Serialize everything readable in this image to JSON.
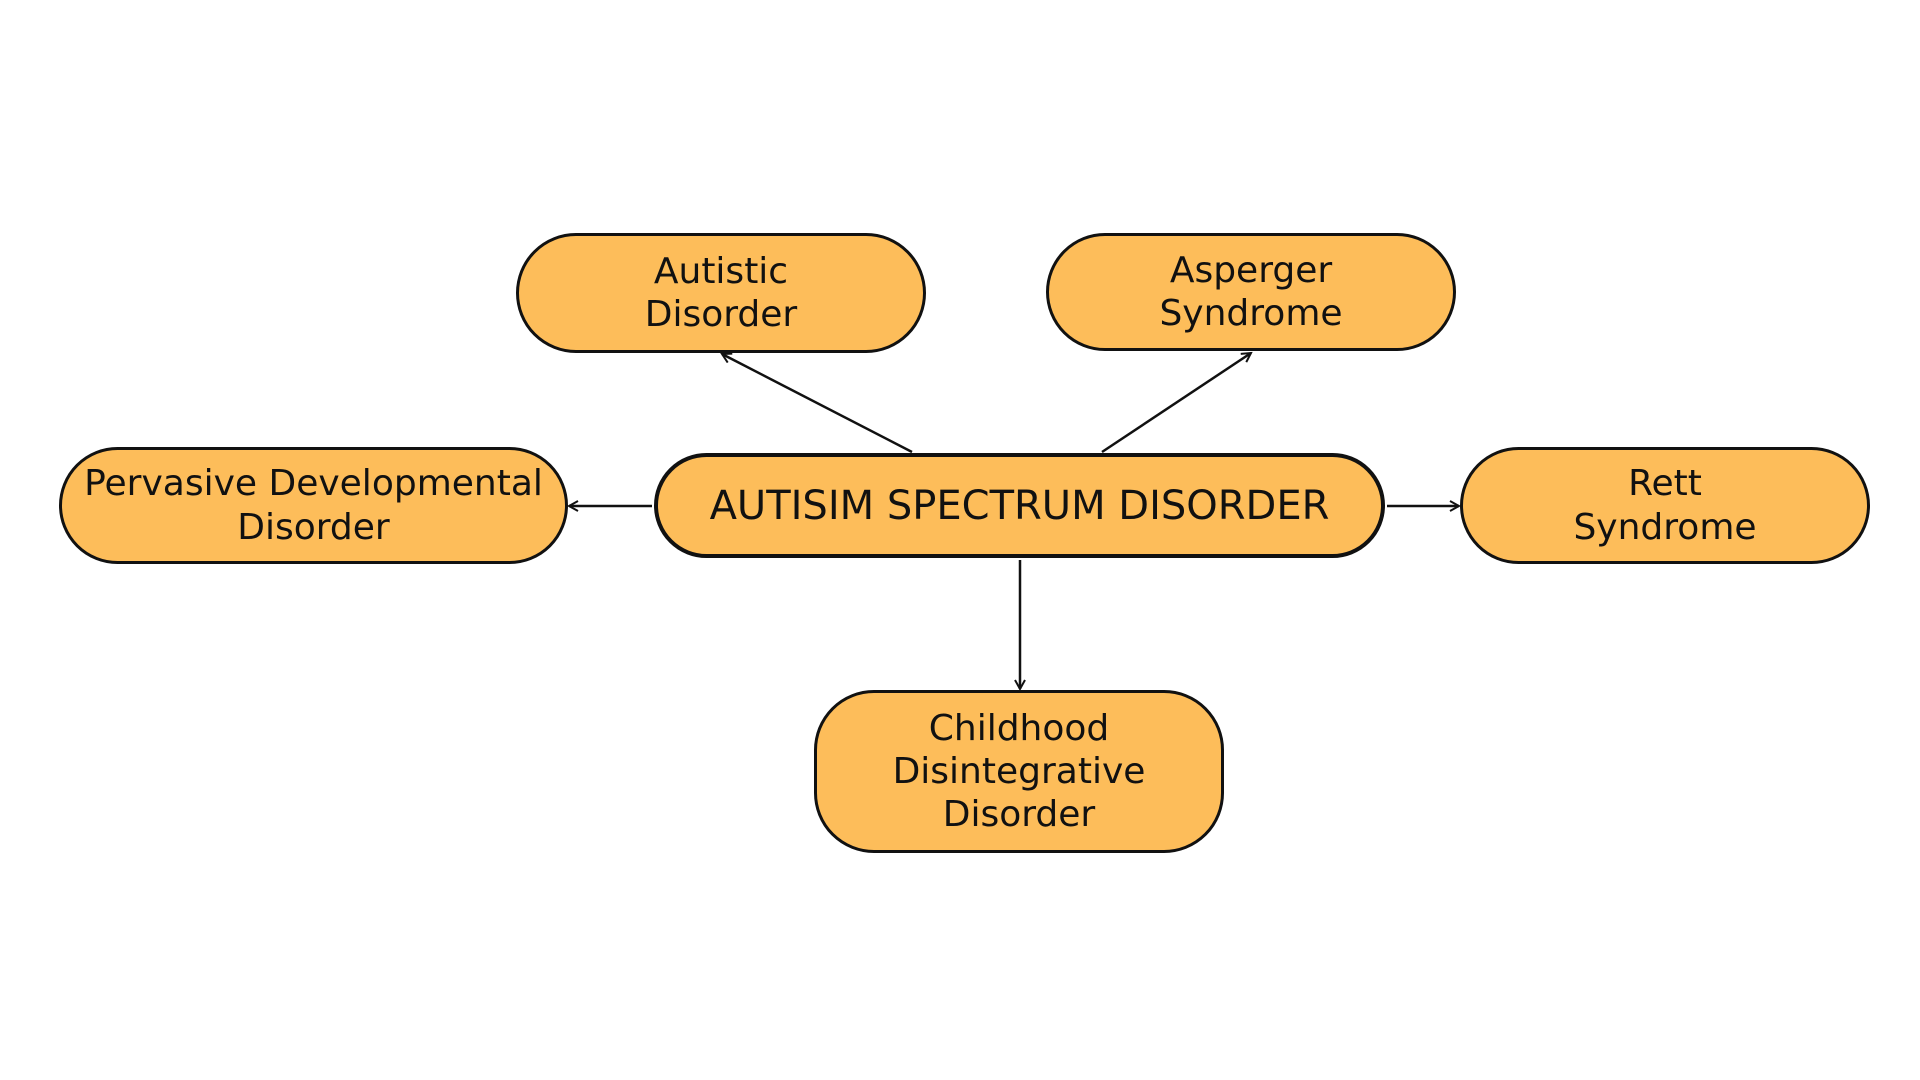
{
  "diagram": {
    "colors": {
      "node_fill": "#FDBD5A",
      "node_border": "#111111",
      "text": "#111111",
      "arrow": "#111111",
      "background": "#FFFFFF"
    },
    "center": {
      "label": "AUTISIM SPECTRUM DISORDER"
    },
    "nodes": {
      "autistic": {
        "lines": [
          "Autistic",
          "Disorder"
        ]
      },
      "asperger": {
        "lines": [
          "Asperger",
          "Syndrome"
        ]
      },
      "pervasive": {
        "lines": [
          "Pervasive Developmental",
          "Disorder"
        ]
      },
      "rett": {
        "lines": [
          "Rett",
          "Syndrome"
        ]
      },
      "childhood": {
        "lines": [
          "Childhood",
          "Disintegrative",
          "Disorder"
        ]
      }
    },
    "edges": [
      {
        "from": "center",
        "to": "autistic"
      },
      {
        "from": "center",
        "to": "asperger"
      },
      {
        "from": "center",
        "to": "pervasive"
      },
      {
        "from": "center",
        "to": "rett"
      },
      {
        "from": "center",
        "to": "childhood"
      }
    ]
  }
}
